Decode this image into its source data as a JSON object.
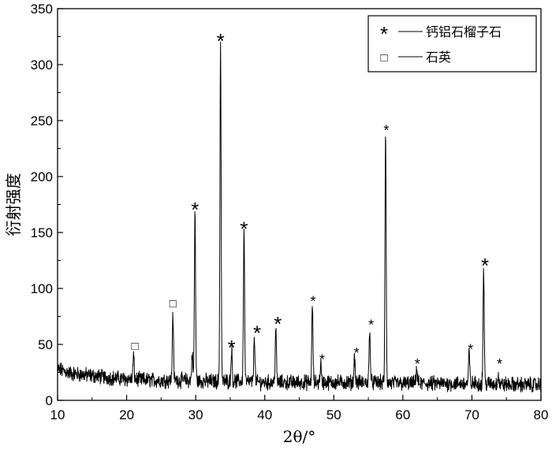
{
  "chart_data": {
    "type": "line",
    "title": "",
    "xlabel": "2θ/°",
    "ylabel": "衍射强度",
    "xlim": [
      10,
      80
    ],
    "ylim": [
      0,
      350
    ],
    "x_ticks": [
      10,
      20,
      30,
      40,
      50,
      60,
      70,
      80
    ],
    "y_ticks": [
      0,
      50,
      100,
      150,
      200,
      250,
      300,
      350
    ],
    "grid": false,
    "legend_position": "top-right",
    "legend": [
      {
        "symbol": "*",
        "label": "钙铝石榴子石"
      },
      {
        "symbol": "□",
        "label": "石英"
      }
    ],
    "series": [
      {
        "name": "",
        "color": "#000000",
        "baseline": [
          [
            10,
            28
          ],
          [
            12,
            24
          ],
          [
            15,
            22
          ],
          [
            18,
            20
          ],
          [
            20,
            19
          ],
          [
            24,
            18
          ],
          [
            28,
            18
          ],
          [
            32,
            17
          ],
          [
            36,
            17
          ],
          [
            40,
            16
          ],
          [
            44,
            16
          ],
          [
            48,
            16
          ],
          [
            52,
            16
          ],
          [
            56,
            16
          ],
          [
            60,
            15
          ],
          [
            64,
            15
          ],
          [
            68,
            15
          ],
          [
            72,
            15
          ],
          [
            76,
            14
          ],
          [
            80,
            14
          ]
        ],
        "peaks": [
          {
            "x": 21.0,
            "y": 40,
            "phase": "石英"
          },
          {
            "x": 26.7,
            "y": 78,
            "phase": "石英"
          },
          {
            "x": 29.5,
            "y": 42,
            "phase": "钙铝石榴子石"
          },
          {
            "x": 29.9,
            "y": 169,
            "phase": "钙铝石榴子石"
          },
          {
            "x": 33.6,
            "y": 320,
            "phase": "钙铝石榴子石"
          },
          {
            "x": 35.2,
            "y": 46,
            "phase": "钙铝石榴子石"
          },
          {
            "x": 37.0,
            "y": 152,
            "phase": "钙铝石榴子石"
          },
          {
            "x": 38.5,
            "y": 59,
            "phase": "钙铝石榴子石"
          },
          {
            "x": 41.6,
            "y": 66,
            "phase": "钙铝石榴子石"
          },
          {
            "x": 46.9,
            "y": 86,
            "phase": "钙铝石榴子石"
          },
          {
            "x": 48.1,
            "y": 33,
            "phase": "钙铝石榴子石"
          },
          {
            "x": 53.0,
            "y": 40,
            "phase": "钙铝石榴子石"
          },
          {
            "x": 55.2,
            "y": 65,
            "phase": "钙铝石榴子石"
          },
          {
            "x": 57.5,
            "y": 239,
            "phase": "钙铝石榴子石"
          },
          {
            "x": 62.0,
            "y": 29,
            "phase": "钙铝石榴子石"
          },
          {
            "x": 69.6,
            "y": 43,
            "phase": "钙铝石榴子石"
          },
          {
            "x": 71.7,
            "y": 118,
            "phase": "钙铝石榴子石"
          },
          {
            "x": 73.8,
            "y": 23,
            "phase": "钙铝石榴子石"
          }
        ]
      }
    ],
    "annotations": [
      {
        "text": "□",
        "x": 21.2,
        "y": 45,
        "size": "large"
      },
      {
        "text": "□",
        "x": 26.7,
        "y": 83,
        "size": "large"
      },
      {
        "text": "*",
        "x": 29.9,
        "y": 174,
        "size": "large"
      },
      {
        "text": "*",
        "x": 33.6,
        "y": 325,
        "size": "large"
      },
      {
        "text": "*",
        "x": 35.2,
        "y": 51,
        "size": "large"
      },
      {
        "text": "*",
        "x": 37.0,
        "y": 157,
        "size": "large"
      },
      {
        "text": "*",
        "x": 38.9,
        "y": 64,
        "size": "large"
      },
      {
        "text": "*",
        "x": 41.9,
        "y": 72,
        "size": "large"
      },
      {
        "text": "*",
        "x": 47.0,
        "y": 91,
        "size": "small"
      },
      {
        "text": "*",
        "x": 48.3,
        "y": 39,
        "size": "small"
      },
      {
        "text": "*",
        "x": 53.3,
        "y": 45,
        "size": "small"
      },
      {
        "text": "*",
        "x": 55.4,
        "y": 70,
        "size": "small"
      },
      {
        "text": "*",
        "x": 57.6,
        "y": 244,
        "size": "small"
      },
      {
        "text": "*",
        "x": 62.1,
        "y": 35,
        "size": "small"
      },
      {
        "text": "*",
        "x": 69.8,
        "y": 48,
        "size": "small"
      },
      {
        "text": "*",
        "x": 71.9,
        "y": 124,
        "size": "large"
      },
      {
        "text": "*",
        "x": 74.0,
        "y": 35,
        "size": "small"
      }
    ]
  }
}
